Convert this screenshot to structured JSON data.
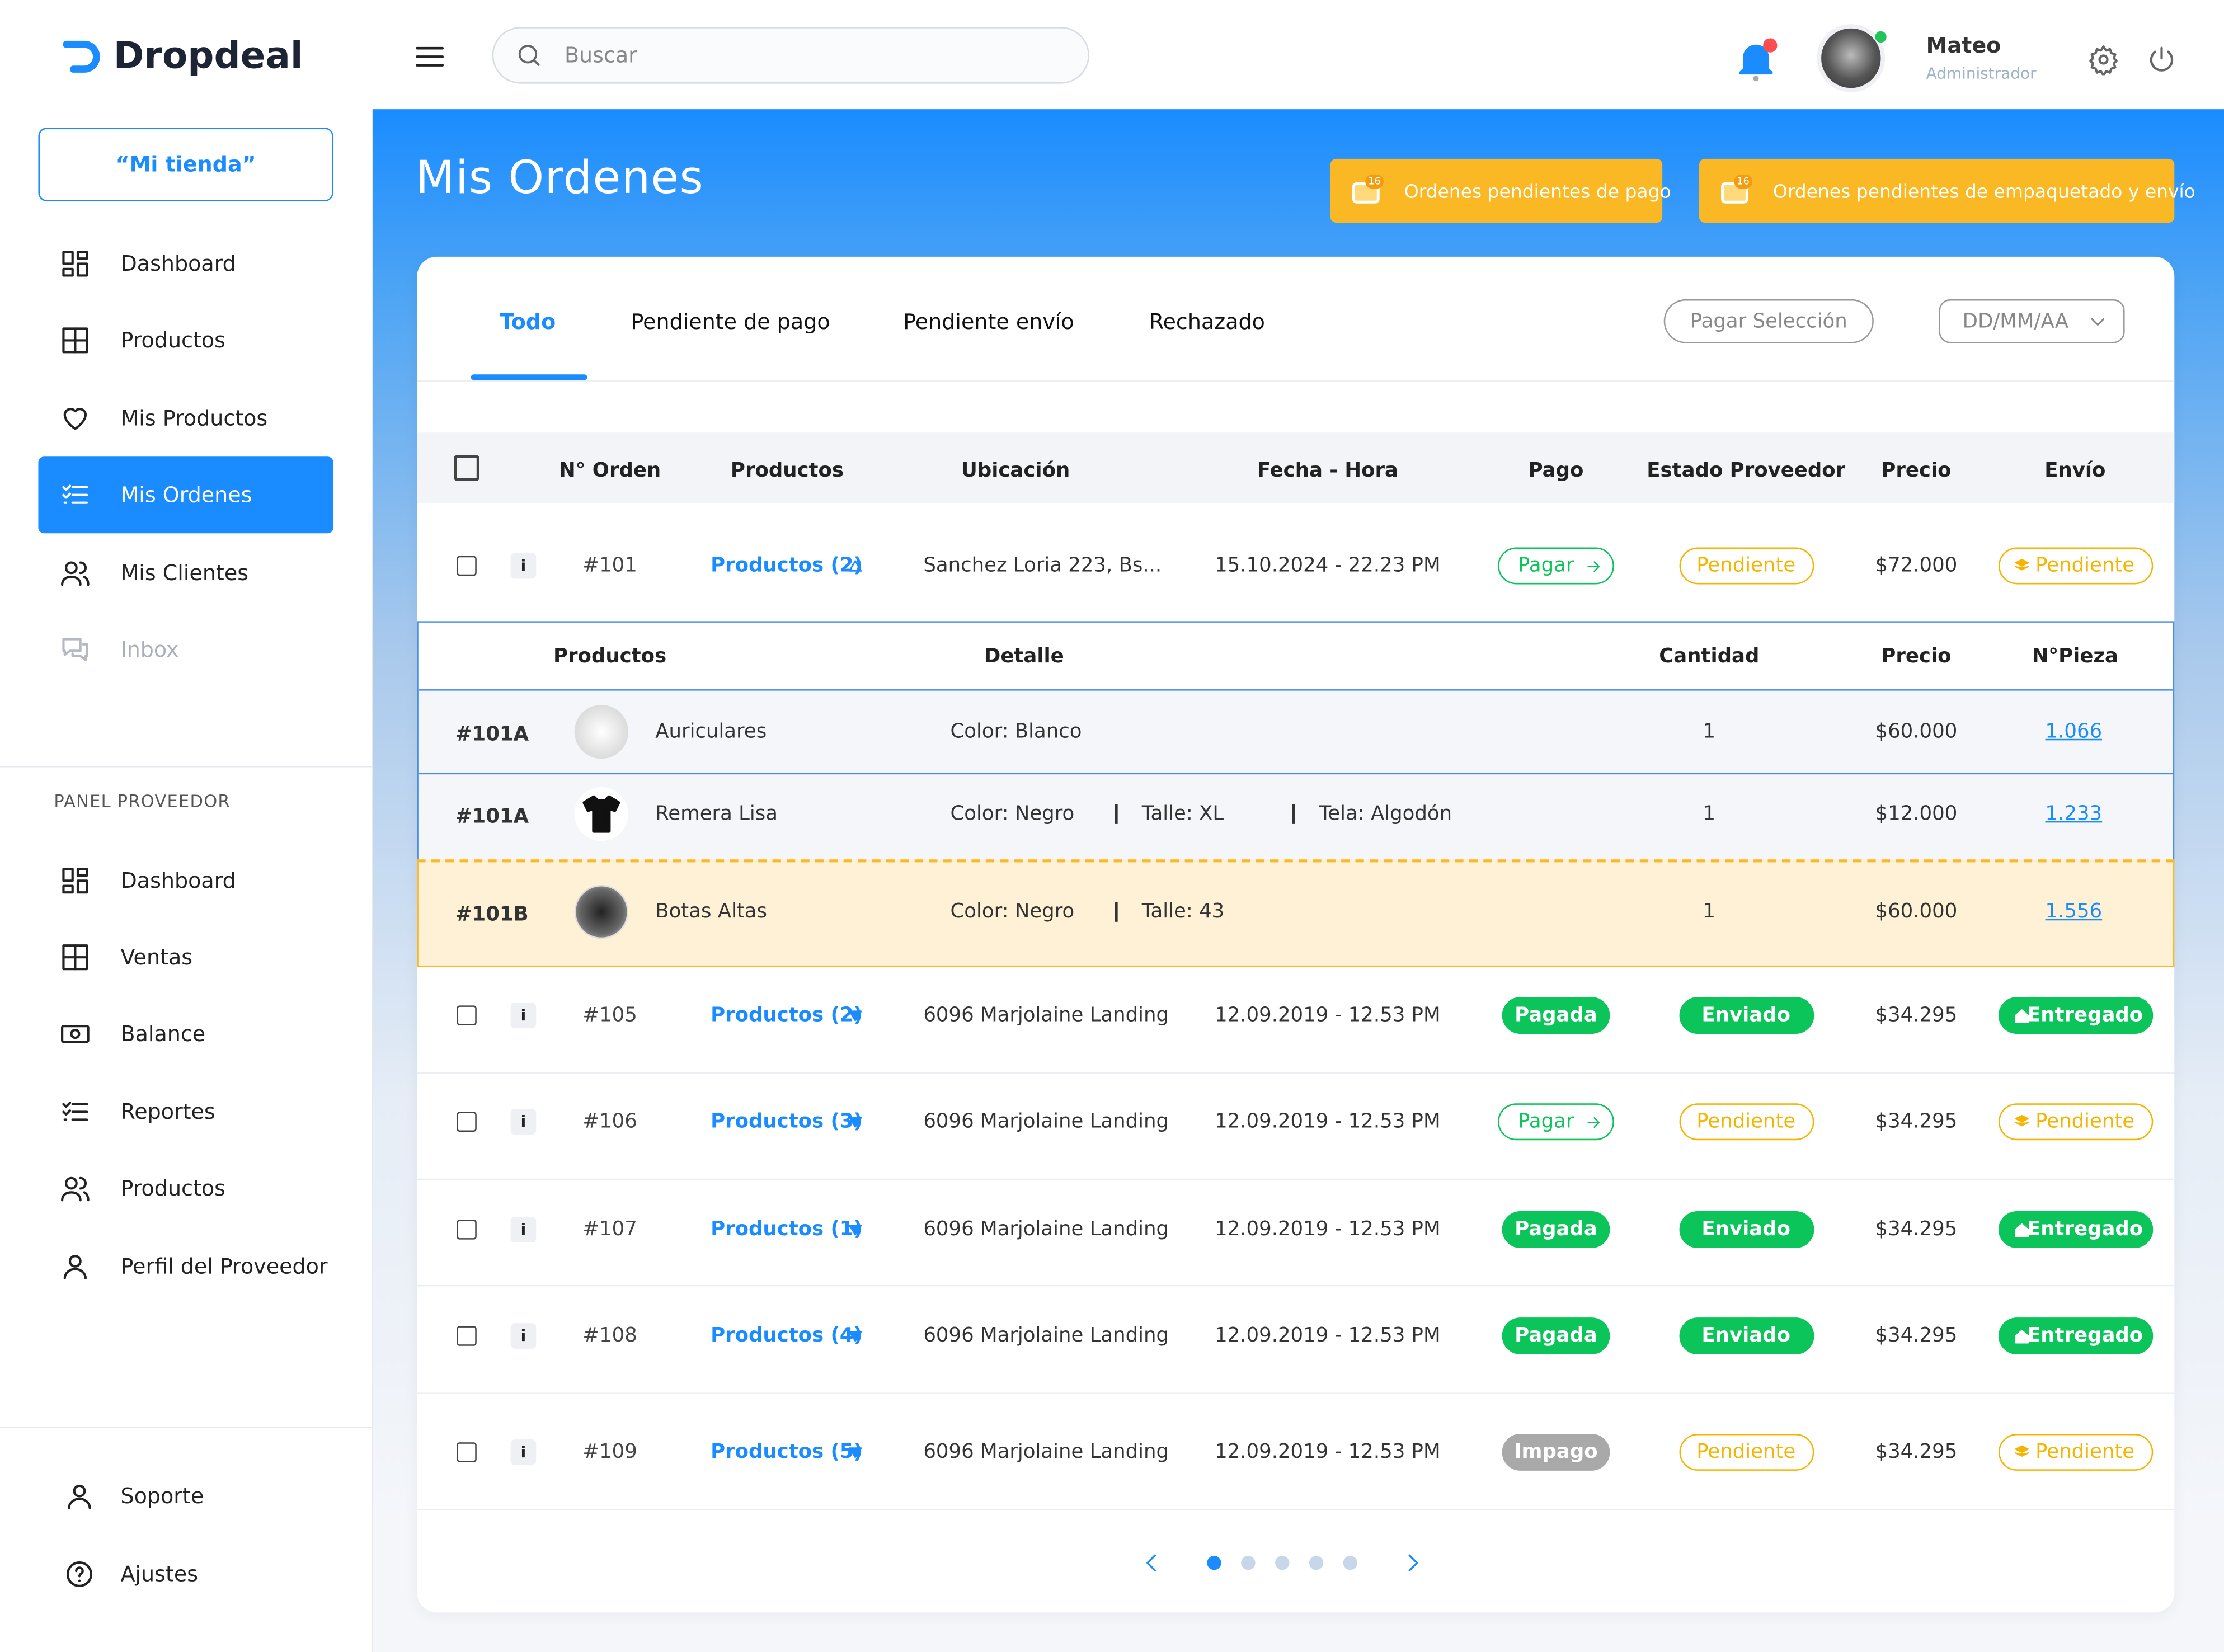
{
  "brand": "Dropdeal",
  "store_button": "“Mi tienda”",
  "nav": [
    "Dashboard",
    "Productos",
    "Mis Productos",
    "Mis Ordenes",
    "Mis Clientes",
    "Inbox"
  ],
  "panel_label": "PANEL PROVEEDOR",
  "panel_nav": [
    "Dashboard",
    "Ventas",
    "Balance",
    "Reportes",
    "Productos",
    "Perfil del Proveedor"
  ],
  "footer_nav": [
    "Soporte",
    "Ajustes"
  ],
  "search_placeholder": "Buscar",
  "user": {
    "name": "Mateo",
    "role": "Administrador"
  },
  "page_title": "Mis Ordenes",
  "alerts": [
    {
      "label": "Ordenes pendientes de pago",
      "count": "16"
    },
    {
      "label": "Ordenes pendientes de empaquetado y envío",
      "count": "16"
    }
  ],
  "tabs": [
    "Todo",
    "Pendiente de pago",
    "Pendiente envío",
    "Rechazado"
  ],
  "pay_selection": "Pagar Selección",
  "date_filter": "DD/MM/AA",
  "table": {
    "headers": [
      "N° Orden",
      "Productos",
      "Ubicación",
      "Fecha - Hora",
      "Pago",
      "Estado Proveedor",
      "Precio",
      "Envío"
    ],
    "info_label": "i",
    "rows": [
      {
        "order": "#101",
        "products": "Productos (2)",
        "location": "Sanchez Loria 223, Bs...",
        "datetime": "15.10.2024 - 22.23 PM",
        "payment": {
          "label": "Pagar",
          "color": "#0bc45a",
          "filled": false,
          "icon": "arrow"
        },
        "supplier_status": {
          "label": "Pendiente",
          "color": "#f5b400",
          "filled": false
        },
        "price": "$72.000",
        "shipping": {
          "label": "Pendiente",
          "color": "#f5b400",
          "filled": false,
          "icon": "box"
        }
      },
      {
        "order": "#105",
        "products": "Productos (2)",
        "location": "6096 Marjolaine Landing",
        "datetime": "12.09.2019 - 12.53 PM",
        "payment": {
          "label": "Pagada",
          "color": "#0bc45a",
          "filled": true
        },
        "supplier_status": {
          "label": "Enviado",
          "color": "#0bc45a",
          "filled": true
        },
        "price": "$34.295",
        "shipping": {
          "label": "Entregado",
          "color": "#0bc45a",
          "filled": true,
          "icon": "home"
        }
      },
      {
        "order": "#106",
        "products": "Productos (3)",
        "location": "6096 Marjolaine Landing",
        "datetime": "12.09.2019 - 12.53 PM",
        "payment": {
          "label": "Pagar",
          "color": "#0bc45a",
          "filled": false,
          "icon": "arrow"
        },
        "supplier_status": {
          "label": "Pendiente",
          "color": "#f5b400",
          "filled": false
        },
        "price": "$34.295",
        "shipping": {
          "label": "Pendiente",
          "color": "#f5b400",
          "filled": false,
          "icon": "box"
        }
      },
      {
        "order": "#107",
        "products": "Productos (1)",
        "location": "6096 Marjolaine Landing",
        "datetime": "12.09.2019 - 12.53 PM",
        "payment": {
          "label": "Pagada",
          "color": "#0bc45a",
          "filled": true
        },
        "supplier_status": {
          "label": "Enviado",
          "color": "#0bc45a",
          "filled": true
        },
        "price": "$34.295",
        "shipping": {
          "label": "Entregado",
          "color": "#0bc45a",
          "filled": true,
          "icon": "home"
        }
      },
      {
        "order": "#108",
        "products": "Productos (4)",
        "location": "6096 Marjolaine Landing",
        "datetime": "12.09.2019 - 12.53 PM",
        "payment": {
          "label": "Pagada",
          "color": "#0bc45a",
          "filled": true
        },
        "supplier_status": {
          "label": "Enviado",
          "color": "#0bc45a",
          "filled": true
        },
        "price": "$34.295",
        "shipping": {
          "label": "Entregado",
          "color": "#0bc45a",
          "filled": true,
          "icon": "home"
        }
      },
      {
        "order": "#109",
        "products": "Productos (5)",
        "location": "6096 Marjolaine Landing",
        "datetime": "12.09.2019 - 12.53 PM",
        "payment": {
          "label": "Impago",
          "color": "#a9a9a9",
          "filled": true
        },
        "supplier_status": {
          "label": "Pendiente",
          "color": "#f5b400",
          "filled": false
        },
        "price": "$34.295",
        "shipping": {
          "label": "Pendiente",
          "color": "#f5b400",
          "filled": false,
          "icon": "box"
        }
      }
    ],
    "detail": {
      "headers": [
        "Productos",
        "Detalle",
        "Cantidad",
        "Precio",
        "N°Pieza"
      ],
      "items": [
        {
          "code": "#101A",
          "name": "Auriculares",
          "details": [
            "Color: Blanco"
          ],
          "qty": "1",
          "price": "$60.000",
          "piece": "1.066"
        },
        {
          "code": "#101A",
          "name": "Remera Lisa",
          "details": [
            "Color: Negro",
            "Talle: XL",
            "Tela: Algodón"
          ],
          "qty": "1",
          "price": "$12.000",
          "piece": "1.233"
        },
        {
          "code": "#101B",
          "name": "Botas Altas",
          "details": [
            "Color: Negro",
            "Talle: 43"
          ],
          "qty": "1",
          "price": "$60.000",
          "piece": "1.556"
        }
      ]
    }
  }
}
